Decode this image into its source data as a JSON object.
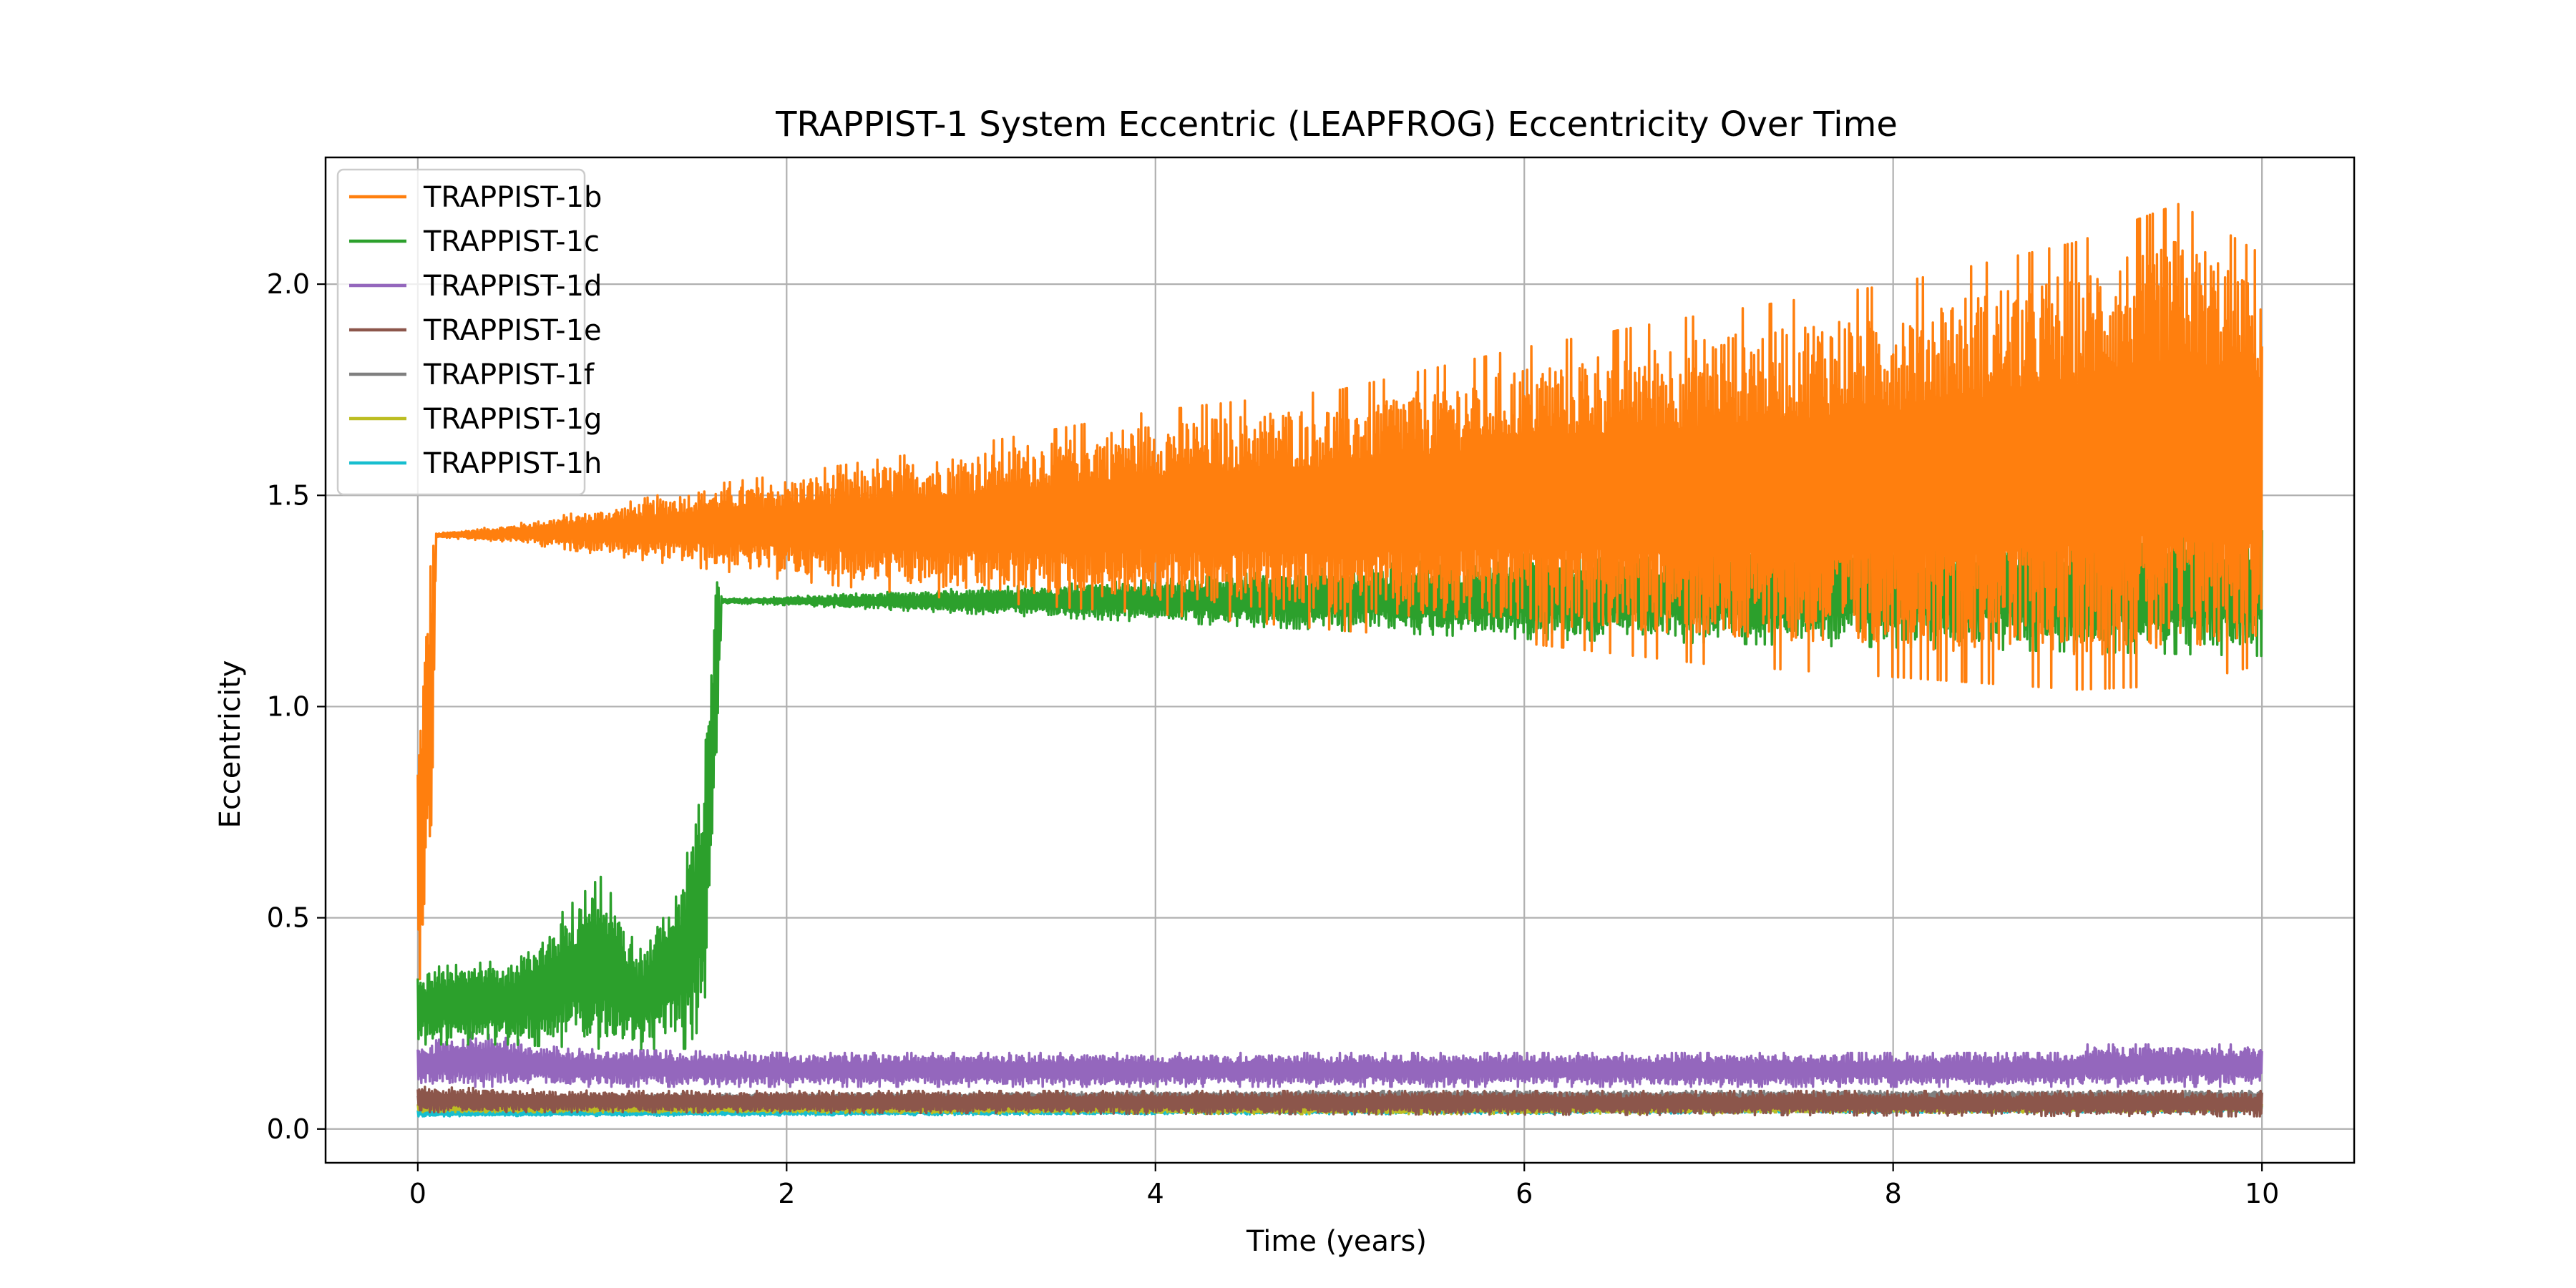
{
  "chart_data": {
    "type": "line",
    "title": "TRAPPIST-1 System Eccentric (LEAPFROG) Eccentricity Over Time",
    "xlabel": "Time (years)",
    "ylabel": "Eccentricity",
    "xlim": [
      -0.5,
      10.5
    ],
    "ylim": [
      -0.08,
      2.3
    ],
    "xticks": [
      0,
      2,
      4,
      6,
      8,
      10
    ],
    "xtick_labels": [
      "0",
      "2",
      "4",
      "6",
      "8",
      "10"
    ],
    "yticks": [
      0.0,
      0.5,
      1.0,
      1.5,
      2.0
    ],
    "ytick_labels": [
      "0.0",
      "0.5",
      "1.0",
      "1.5",
      "2.0"
    ],
    "grid": true,
    "legend_position": "upper-left",
    "series": [
      {
        "name": "TRAPPIST-1b",
        "color": "#ff7f0e",
        "envelope": [
          {
            "x": 0.0,
            "lo": 0.3,
            "hi": 0.93
          },
          {
            "x": 0.08,
            "lo": 0.68,
            "hi": 1.47
          },
          {
            "x": 0.1,
            "lo": 1.4,
            "hi": 1.41
          },
          {
            "x": 0.5,
            "lo": 1.39,
            "hi": 1.43
          },
          {
            "x": 1.0,
            "lo": 1.36,
            "hi": 1.47
          },
          {
            "x": 1.5,
            "lo": 1.33,
            "hi": 1.52
          },
          {
            "x": 2.0,
            "lo": 1.3,
            "hi": 1.55
          },
          {
            "x": 3.0,
            "lo": 1.25,
            "hi": 1.62
          },
          {
            "x": 4.0,
            "lo": 1.22,
            "hi": 1.7
          },
          {
            "x": 5.0,
            "lo": 1.18,
            "hi": 1.75
          },
          {
            "x": 6.0,
            "lo": 1.15,
            "hi": 1.85
          },
          {
            "x": 7.0,
            "lo": 1.1,
            "hi": 1.93
          },
          {
            "x": 8.0,
            "lo": 1.07,
            "hi": 2.0
          },
          {
            "x": 9.0,
            "lo": 1.04,
            "hi": 2.1
          },
          {
            "x": 9.55,
            "lo": 1.05,
            "hi": 2.19
          },
          {
            "x": 10.0,
            "lo": 1.1,
            "hi": 2.07
          }
        ]
      },
      {
        "name": "TRAPPIST-1c",
        "color": "#2ca02c",
        "envelope": [
          {
            "x": 0.0,
            "lo": 0.2,
            "hi": 0.38
          },
          {
            "x": 0.5,
            "lo": 0.2,
            "hi": 0.4
          },
          {
            "x": 1.0,
            "lo": 0.19,
            "hi": 0.6
          },
          {
            "x": 1.2,
            "lo": 0.19,
            "hi": 0.42
          },
          {
            "x": 1.45,
            "lo": 0.19,
            "hi": 0.62
          },
          {
            "x": 1.55,
            "lo": 0.25,
            "hi": 0.91
          },
          {
            "x": 1.62,
            "lo": 0.81,
            "hi": 1.35
          },
          {
            "x": 1.65,
            "lo": 1.245,
            "hi": 1.255
          },
          {
            "x": 2.0,
            "lo": 1.24,
            "hi": 1.26
          },
          {
            "x": 3.0,
            "lo": 1.22,
            "hi": 1.28
          },
          {
            "x": 4.0,
            "lo": 1.2,
            "hi": 1.3
          },
          {
            "x": 5.0,
            "lo": 1.18,
            "hi": 1.33
          },
          {
            "x": 6.0,
            "lo": 1.16,
            "hi": 1.36
          },
          {
            "x": 7.0,
            "lo": 1.15,
            "hi": 1.38
          },
          {
            "x": 8.0,
            "lo": 1.14,
            "hi": 1.4
          },
          {
            "x": 9.0,
            "lo": 1.13,
            "hi": 1.42
          },
          {
            "x": 10.0,
            "lo": 1.12,
            "hi": 1.44
          }
        ]
      },
      {
        "name": "TRAPPIST-1d",
        "color": "#9467bd",
        "envelope": [
          {
            "x": 0.0,
            "lo": 0.1,
            "hi": 0.2
          },
          {
            "x": 0.3,
            "lo": 0.1,
            "hi": 0.23
          },
          {
            "x": 0.8,
            "lo": 0.1,
            "hi": 0.19
          },
          {
            "x": 2.0,
            "lo": 0.1,
            "hi": 0.18
          },
          {
            "x": 5.0,
            "lo": 0.1,
            "hi": 0.18
          },
          {
            "x": 8.95,
            "lo": 0.1,
            "hi": 0.18
          },
          {
            "x": 9.05,
            "lo": 0.1,
            "hi": 0.2
          },
          {
            "x": 10.0,
            "lo": 0.1,
            "hi": 0.2
          }
        ]
      },
      {
        "name": "TRAPPIST-1e",
        "color": "#8c564b",
        "envelope": [
          {
            "x": 0.0,
            "lo": 0.04,
            "hi": 0.1
          },
          {
            "x": 1.0,
            "lo": 0.04,
            "hi": 0.09
          },
          {
            "x": 5.0,
            "lo": 0.035,
            "hi": 0.09
          },
          {
            "x": 10.0,
            "lo": 0.03,
            "hi": 0.09
          }
        ]
      },
      {
        "name": "TRAPPIST-1f",
        "color": "#7f7f7f",
        "envelope": [
          {
            "x": 0.0,
            "lo": 0.06,
            "hi": 0.08
          },
          {
            "x": 5.0,
            "lo": 0.06,
            "hi": 0.09
          },
          {
            "x": 10.0,
            "lo": 0.06,
            "hi": 0.09
          }
        ]
      },
      {
        "name": "TRAPPIST-1g",
        "color": "#bcbd22",
        "envelope": [
          {
            "x": 0.0,
            "lo": 0.04,
            "hi": 0.06
          },
          {
            "x": 5.0,
            "lo": 0.035,
            "hi": 0.065
          },
          {
            "x": 10.0,
            "lo": 0.04,
            "hi": 0.065
          }
        ]
      },
      {
        "name": "TRAPPIST-1h",
        "color": "#17becf",
        "envelope": [
          {
            "x": 0.0,
            "lo": 0.03,
            "hi": 0.045
          },
          {
            "x": 5.0,
            "lo": 0.035,
            "hi": 0.055
          },
          {
            "x": 10.0,
            "lo": 0.04,
            "hi": 0.06
          }
        ]
      }
    ]
  }
}
